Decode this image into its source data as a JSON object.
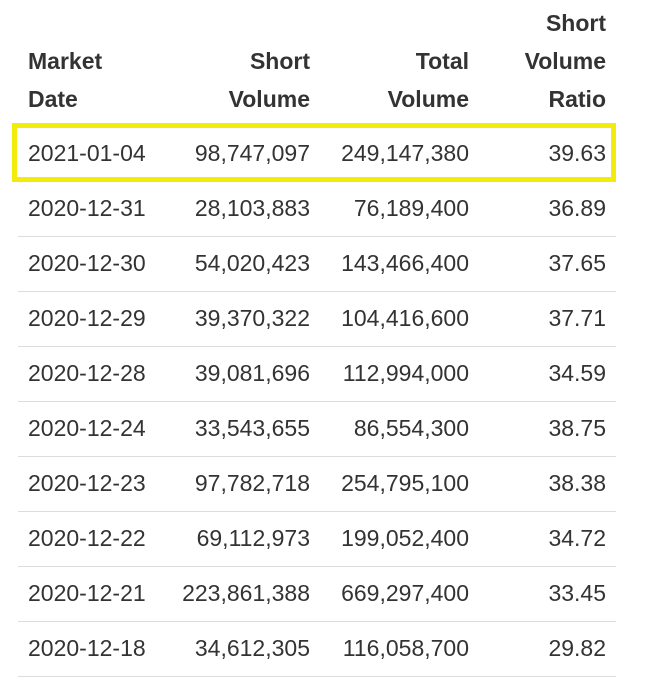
{
  "table": {
    "headers": {
      "date": [
        "Market",
        "Date"
      ],
      "short": [
        "Short",
        "Volume"
      ],
      "total": [
        "Total",
        "Volume"
      ],
      "ratio": [
        "Short",
        "Volume",
        "Ratio"
      ]
    },
    "rows": [
      {
        "date": "2021-01-04",
        "short_volume": "98,747,097",
        "total_volume": "249,147,380",
        "ratio": "39.63"
      },
      {
        "date": "2020-12-31",
        "short_volume": "28,103,883",
        "total_volume": "76,189,400",
        "ratio": "36.89"
      },
      {
        "date": "2020-12-30",
        "short_volume": "54,020,423",
        "total_volume": "143,466,400",
        "ratio": "37.65"
      },
      {
        "date": "2020-12-29",
        "short_volume": "39,370,322",
        "total_volume": "104,416,600",
        "ratio": "37.71"
      },
      {
        "date": "2020-12-28",
        "short_volume": "39,081,696",
        "total_volume": "112,994,000",
        "ratio": "34.59"
      },
      {
        "date": "2020-12-24",
        "short_volume": "33,543,655",
        "total_volume": "86,554,300",
        "ratio": "38.75"
      },
      {
        "date": "2020-12-23",
        "short_volume": "97,782,718",
        "total_volume": "254,795,100",
        "ratio": "38.38"
      },
      {
        "date": "2020-12-22",
        "short_volume": "69,112,973",
        "total_volume": "199,052,400",
        "ratio": "34.72"
      },
      {
        "date": "2020-12-21",
        "short_volume": "223,861,388",
        "total_volume": "669,297,400",
        "ratio": "33.45"
      },
      {
        "date": "2020-12-18",
        "short_volume": "34,612,305",
        "total_volume": "116,058,700",
        "ratio": "29.82"
      }
    ]
  },
  "highlight": {
    "color": "#f3ec0a",
    "row_index": 0
  }
}
